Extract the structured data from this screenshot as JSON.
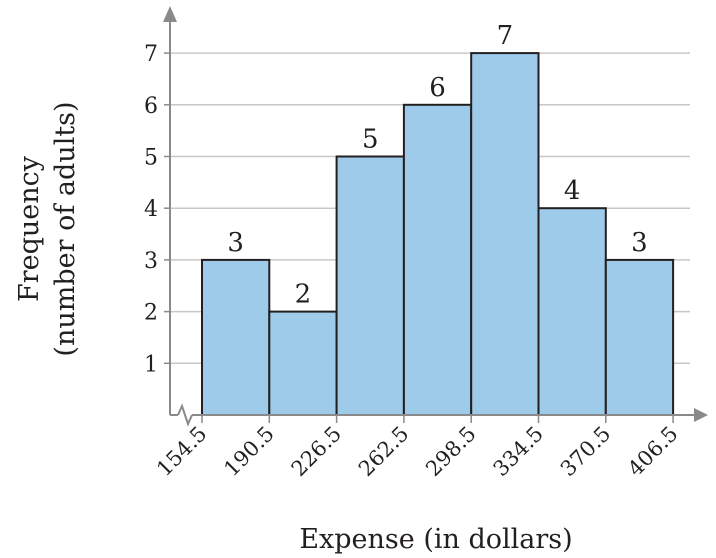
{
  "chart_data": {
    "type": "bar",
    "subtype": "histogram",
    "title": "",
    "xlabel": "Expense (in dollars)",
    "ylabel_lines": [
      "Frequency",
      "(number of adults)"
    ],
    "bin_edges": [
      154.5,
      190.5,
      226.5,
      262.5,
      298.5,
      334.5,
      370.5,
      406.5
    ],
    "x_tick_labels": [
      "154.5",
      "190.5",
      "226.5",
      "262.5",
      "298.5",
      "334.5",
      "370.5",
      "406.5"
    ],
    "values": [
      3,
      2,
      5,
      6,
      7,
      4,
      3
    ],
    "ylim": [
      0,
      7
    ],
    "y_ticks": [
      1,
      2,
      3,
      4,
      5,
      6,
      7
    ],
    "grid": "horizontal",
    "x_axis_break": true,
    "colors": {
      "bar_fill": "#9fcbeb",
      "bar_stroke": "#231f20",
      "grid": "#c8c8c8",
      "axis": "#8a8a8a"
    }
  }
}
